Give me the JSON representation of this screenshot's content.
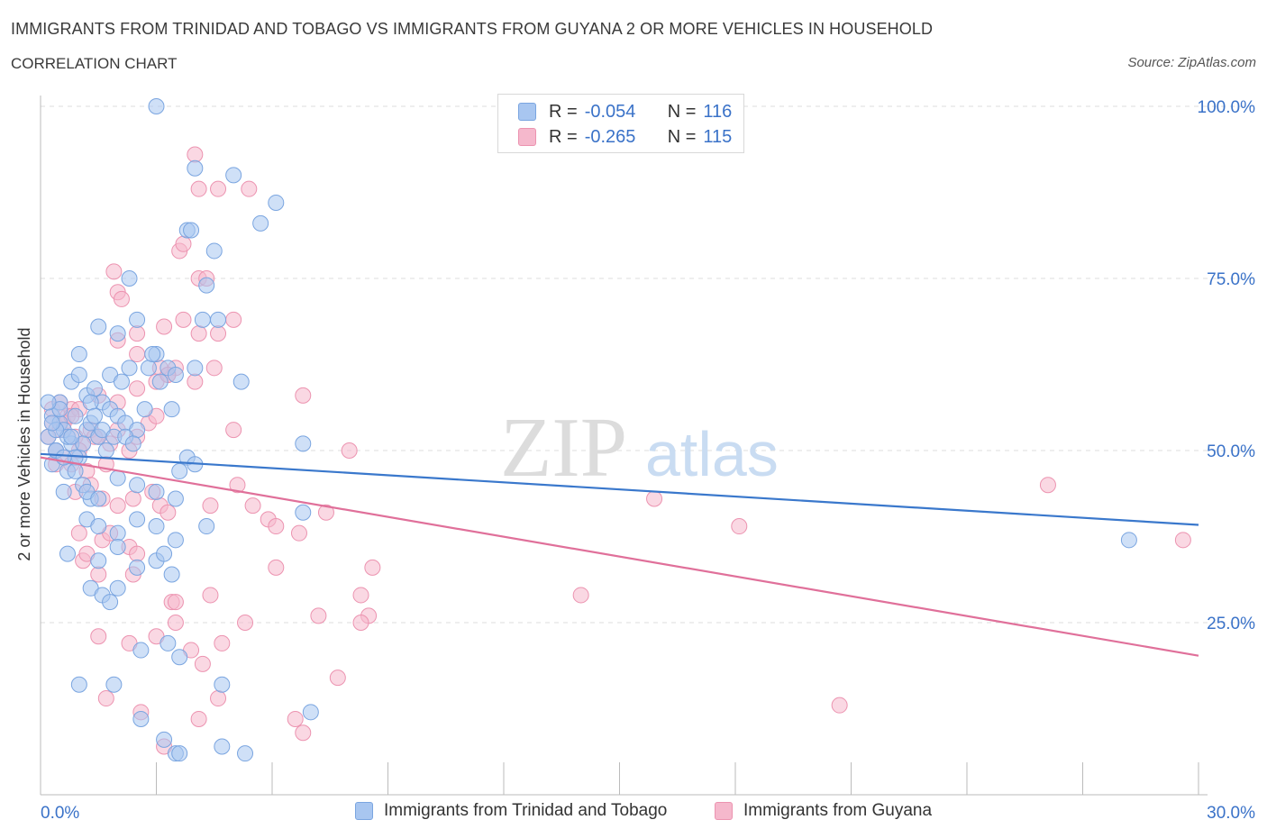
{
  "header": {
    "title": "IMMIGRANTS FROM TRINIDAD AND TOBAGO VS IMMIGRANTS FROM GUYANA 2 OR MORE VEHICLES IN HOUSEHOLD",
    "subtitle": "CORRELATION CHART",
    "source": "Source: ZipAtlas.com"
  },
  "legend": {
    "r_label": "R =",
    "n_label": "N =",
    "series1": {
      "r": "-0.054",
      "n": "116"
    },
    "series2": {
      "r": "-0.265",
      "n": "115"
    }
  },
  "watermark": {
    "zip": "ZIP",
    "atlas": "atlas"
  },
  "colors": {
    "blue_fill": "#a8c6f0",
    "blue_stroke": "#7aa5e0",
    "blue_line": "#3a78cc",
    "pink_fill": "#f5b8cc",
    "pink_stroke": "#ec93b0",
    "pink_line": "#e0709a",
    "tick_label": "#3a72c8",
    "grid": "#dddddd"
  },
  "chart_data": {
    "type": "scatter",
    "ylabel": "2 or more Vehicles in Household",
    "xlim": [
      0,
      30
    ],
    "ylim": [
      0,
      100
    ],
    "x_tick_labels": [
      "0.0%",
      "30.0%"
    ],
    "y_ticks": [
      25,
      50,
      75,
      100
    ],
    "y_tick_labels": [
      "25.0%",
      "50.0%",
      "75.0%",
      "100.0%"
    ],
    "grid": true,
    "series": [
      {
        "name": "Immigrants from Trinidad and Tobago",
        "trend": {
          "x": [
            0,
            30
          ],
          "y": [
            49.5,
            39.2
          ]
        },
        "points": [
          [
            0.3,
            55
          ],
          [
            0.2,
            52
          ],
          [
            0.5,
            54
          ],
          [
            0.4,
            50
          ],
          [
            0.6,
            53
          ],
          [
            0.8,
            51
          ],
          [
            1.0,
            49
          ],
          [
            1.2,
            53
          ],
          [
            1.5,
            52
          ],
          [
            0.9,
            55
          ],
          [
            0.3,
            48
          ],
          [
            0.7,
            47
          ],
          [
            1.1,
            45
          ],
          [
            0.6,
            44
          ],
          [
            1.3,
            43
          ],
          [
            0.5,
            57
          ],
          [
            0.8,
            60
          ],
          [
            1.0,
            61
          ],
          [
            1.2,
            58
          ],
          [
            1.4,
            59
          ],
          [
            1.6,
            57
          ],
          [
            1.8,
            56
          ],
          [
            2.0,
            55
          ],
          [
            2.2,
            54
          ],
          [
            2.5,
            53
          ],
          [
            1.0,
            64
          ],
          [
            1.5,
            68
          ],
          [
            2.0,
            67
          ],
          [
            2.3,
            62
          ],
          [
            2.5,
            69
          ],
          [
            2.8,
            62
          ],
          [
            3.0,
            64
          ],
          [
            3.3,
            62
          ],
          [
            3.5,
            61
          ],
          [
            4.0,
            62
          ],
          [
            4.2,
            69
          ],
          [
            4.6,
            69
          ],
          [
            3.8,
            82
          ],
          [
            3.9,
            82
          ],
          [
            4.5,
            79
          ],
          [
            4.3,
            74
          ],
          [
            5.0,
            90
          ],
          [
            4.0,
            91
          ],
          [
            5.7,
            83
          ],
          [
            6.1,
            86
          ],
          [
            2.3,
            75
          ],
          [
            1.2,
            44
          ],
          [
            1.5,
            43
          ],
          [
            2.0,
            46
          ],
          [
            2.5,
            45
          ],
          [
            3.0,
            44
          ],
          [
            3.5,
            43
          ],
          [
            3.6,
            47
          ],
          [
            3.8,
            49
          ],
          [
            4.0,
            48
          ],
          [
            1.2,
            40
          ],
          [
            1.5,
            39
          ],
          [
            2.0,
            38
          ],
          [
            2.5,
            40
          ],
          [
            3.0,
            39
          ],
          [
            3.5,
            37
          ],
          [
            4.3,
            39
          ],
          [
            0.7,
            35
          ],
          [
            1.5,
            34
          ],
          [
            2.0,
            36
          ],
          [
            2.5,
            33
          ],
          [
            3.0,
            34
          ],
          [
            3.2,
            35
          ],
          [
            3.4,
            32
          ],
          [
            1.3,
            30
          ],
          [
            1.6,
            29
          ],
          [
            1.8,
            28
          ],
          [
            2.0,
            30
          ],
          [
            2.6,
            21
          ],
          [
            3.3,
            22
          ],
          [
            3.6,
            20
          ],
          [
            1.0,
            16
          ],
          [
            1.9,
            16
          ],
          [
            4.7,
            16
          ],
          [
            2.6,
            11
          ],
          [
            3.2,
            8
          ],
          [
            3.5,
            6
          ],
          [
            3.6,
            6
          ],
          [
            4.7,
            7
          ],
          [
            5.3,
            6
          ],
          [
            7.0,
            12
          ],
          [
            3.0,
            100
          ],
          [
            0.4,
            50
          ],
          [
            0.9,
            49
          ],
          [
            1.3,
            54
          ],
          [
            1.6,
            53
          ],
          [
            1.9,
            52
          ],
          [
            2.2,
            52
          ],
          [
            2.4,
            51
          ],
          [
            0.5,
            56
          ],
          [
            0.7,
            52
          ],
          [
            1.1,
            51
          ],
          [
            1.7,
            50
          ],
          [
            0.2,
            57
          ],
          [
            0.4,
            53
          ],
          [
            0.6,
            49
          ],
          [
            0.9,
            47
          ],
          [
            1.3,
            57
          ],
          [
            1.8,
            61
          ],
          [
            2.1,
            60
          ],
          [
            2.9,
            64
          ],
          [
            3.1,
            60
          ],
          [
            5.2,
            60
          ],
          [
            6.8,
            51
          ],
          [
            6.8,
            41
          ],
          [
            28.2,
            37
          ],
          [
            0.3,
            54
          ],
          [
            0.8,
            52
          ],
          [
            1.4,
            55
          ],
          [
            2.7,
            56
          ],
          [
            3.4,
            56
          ]
        ]
      },
      {
        "name": "Immigrants from Guyana",
        "trend": {
          "x": [
            0,
            30
          ],
          "y": [
            49.0,
            20.2
          ]
        },
        "points": [
          [
            0.3,
            54
          ],
          [
            0.5,
            53
          ],
          [
            0.7,
            55
          ],
          [
            0.9,
            52
          ],
          [
            1.1,
            51
          ],
          [
            1.3,
            53
          ],
          [
            0.4,
            50
          ],
          [
            0.6,
            49
          ],
          [
            0.8,
            48
          ],
          [
            1.0,
            50
          ],
          [
            1.2,
            47
          ],
          [
            1.5,
            52
          ],
          [
            1.8,
            51
          ],
          [
            2.0,
            53
          ],
          [
            2.5,
            52
          ],
          [
            2.8,
            54
          ],
          [
            3.0,
            55
          ],
          [
            0.3,
            56
          ],
          [
            0.5,
            57
          ],
          [
            0.8,
            56
          ],
          [
            1.5,
            58
          ],
          [
            2.0,
            57
          ],
          [
            2.5,
            59
          ],
          [
            3.0,
            60
          ],
          [
            3.3,
            61
          ],
          [
            3.5,
            62
          ],
          [
            4.0,
            60
          ],
          [
            4.5,
            62
          ],
          [
            2.0,
            66
          ],
          [
            2.5,
            67
          ],
          [
            3.2,
            68
          ],
          [
            3.7,
            69
          ],
          [
            4.1,
            67
          ],
          [
            4.6,
            67
          ],
          [
            5.0,
            69
          ],
          [
            1.9,
            76
          ],
          [
            2.0,
            73
          ],
          [
            2.1,
            72
          ],
          [
            3.6,
            79
          ],
          [
            3.7,
            80
          ],
          [
            4.1,
            75
          ],
          [
            4.3,
            75
          ],
          [
            4.1,
            88
          ],
          [
            4.6,
            88
          ],
          [
            5.4,
            88
          ],
          [
            4.0,
            93
          ],
          [
            2.5,
            64
          ],
          [
            3.1,
            62
          ],
          [
            3.3,
            61
          ],
          [
            0.9,
            44
          ],
          [
            1.3,
            45
          ],
          [
            1.6,
            43
          ],
          [
            2.0,
            42
          ],
          [
            2.4,
            43
          ],
          [
            2.9,
            44
          ],
          [
            3.1,
            42
          ],
          [
            3.3,
            41
          ],
          [
            4.4,
            42
          ],
          [
            5.1,
            45
          ],
          [
            5.5,
            42
          ],
          [
            5.9,
            40
          ],
          [
            6.1,
            39
          ],
          [
            6.7,
            38
          ],
          [
            7.4,
            41
          ],
          [
            1.0,
            38
          ],
          [
            1.6,
            37
          ],
          [
            1.8,
            38
          ],
          [
            2.3,
            36
          ],
          [
            2.5,
            35
          ],
          [
            1.1,
            34
          ],
          [
            1.2,
            35
          ],
          [
            1.5,
            32
          ],
          [
            2.4,
            32
          ],
          [
            3.4,
            28
          ],
          [
            3.5,
            28
          ],
          [
            4.4,
            29
          ],
          [
            5.3,
            25
          ],
          [
            6.1,
            33
          ],
          [
            7.2,
            26
          ],
          [
            8.3,
            29
          ],
          [
            8.5,
            26
          ],
          [
            8.6,
            33
          ],
          [
            1.5,
            23
          ],
          [
            2.3,
            22
          ],
          [
            3.0,
            23
          ],
          [
            3.5,
            25
          ],
          [
            3.9,
            21
          ],
          [
            4.2,
            19
          ],
          [
            4.7,
            22
          ],
          [
            1.7,
            14
          ],
          [
            2.6,
            12
          ],
          [
            3.2,
            7
          ],
          [
            4.1,
            11
          ],
          [
            4.6,
            14
          ],
          [
            6.6,
            11
          ],
          [
            6.8,
            9
          ],
          [
            7.7,
            17
          ],
          [
            8.3,
            25
          ],
          [
            14.0,
            29
          ],
          [
            15.9,
            43
          ],
          [
            18.1,
            39
          ],
          [
            20.7,
            13
          ],
          [
            26.1,
            45
          ],
          [
            29.6,
            37
          ],
          [
            0.2,
            52
          ],
          [
            0.6,
            54
          ],
          [
            1.0,
            56
          ],
          [
            1.4,
            52
          ],
          [
            1.7,
            48
          ],
          [
            2.3,
            50
          ],
          [
            0.4,
            48
          ],
          [
            0.8,
            55
          ],
          [
            5.0,
            53
          ],
          [
            6.8,
            58
          ],
          [
            8.0,
            50
          ]
        ]
      }
    ]
  },
  "bottom_legend": {
    "series1": "Immigrants from Trinidad and Tobago",
    "series2": "Immigrants from Guyana"
  }
}
